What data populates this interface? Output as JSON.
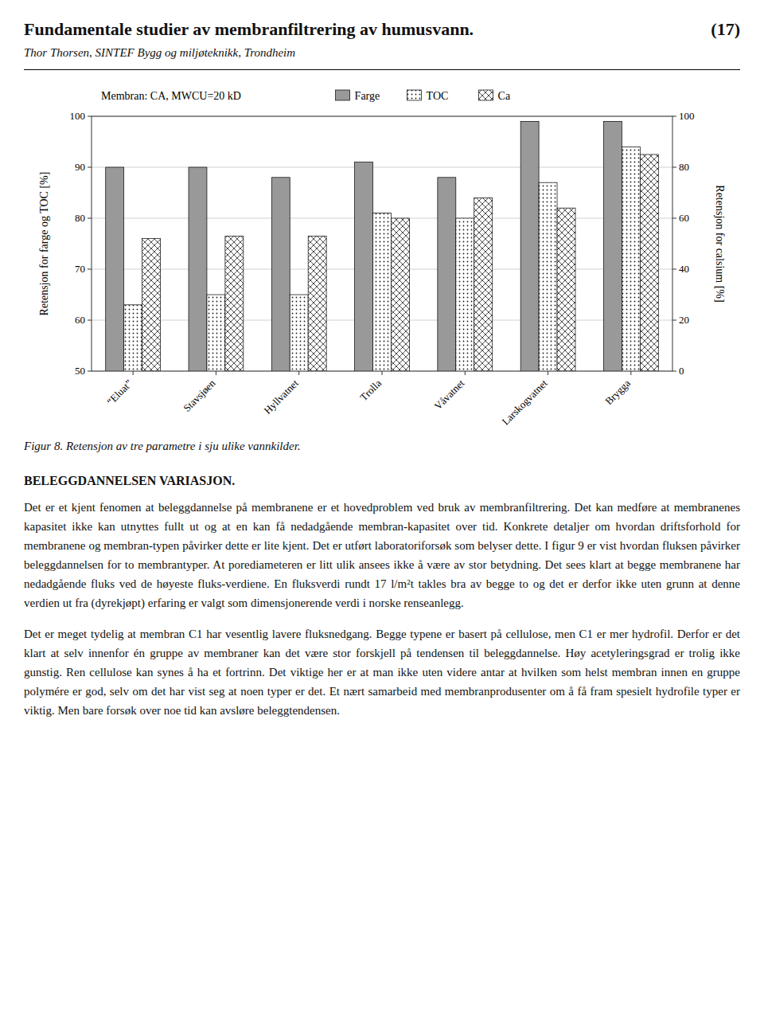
{
  "chart_data": {
    "type": "bar",
    "legend_title": "Membran: CA, MWCU=20 kD",
    "categories": [
      "“Eluat”",
      "Stavsjøen",
      "Hyllvatnet",
      "Trolla",
      "Våvatnet",
      "Larskogvatnet",
      "Brygga"
    ],
    "series": [
      {
        "name": "Farge",
        "color": "#999999",
        "values": [
          90,
          90,
          88,
          91,
          88,
          99,
          99
        ]
      },
      {
        "name": "TOC",
        "color": "#ffffff",
        "values": [
          63,
          65,
          65,
          81,
          80,
          87,
          94
        ]
      },
      {
        "name": "Ca",
        "color": "#ffffff",
        "axis": "y2",
        "values": [
          52,
          53,
          53,
          60,
          68,
          64,
          85
        ]
      }
    ],
    "ylabel": "Retensjon for farge og TOC [%]",
    "y2label": "Retensjon for calsium [%]",
    "ylim": [
      50,
      100
    ],
    "yticks": [
      50,
      60,
      70,
      80,
      90,
      100
    ],
    "y2lim": [
      0,
      100
    ],
    "y2ticks": [
      0,
      20,
      40,
      60,
      80,
      100
    ],
    "grid": true
  },
  "page": {
    "title": "Fundamentale studier av membranfiltrering av humusvann.",
    "title_num": "(17)",
    "subtitle": "Thor Thorsen, SINTEF Bygg og miljøteknikk, Trondheim",
    "caption": "Figur 8. Retensjon av tre parametre i sju ulike vannkilder.",
    "section_title": "BELEGGDANNELSEN VARIASJON.",
    "paragraphs": [
      "Det er et kjent fenomen at beleggdannelse på membranene er et hovedproblem ved bruk av membranfiltrering. Det kan medføre at membranenes kapasitet ikke kan utnyttes fullt ut og at en kan få nedadgående membran-kapasitet over tid. Konkrete detaljer om hvordan driftsforhold for membranene og membran-typen påvirker dette er lite kjent. Det er utført laboratoriforsøk som belyser dette. I figur 9 er vist hvordan fluksen påvirker beleggdannelsen for to membrantyper. At porediameteren er litt ulik ansees ikke å være av stor betydning. Det sees klart at begge membranene har nedadgående fluks ved de høyeste fluks-verdiene. En fluksverdi rundt 17 l/m²t takles bra av begge to og det er derfor ikke uten grunn at denne verdien ut fra (dyrekjøpt) erfaring er valgt som dimensjonerende verdi i norske renseanlegg.",
      "Det er meget tydelig at membran C1 har vesentlig lavere fluksnedgang. Begge typene er basert på cellulose, men C1 er mer hydrofil. Derfor er det klart at selv innenfor én gruppe av membraner kan det være stor forskjell på tendensen til beleggdannelse. Høy acetyleringsgrad er trolig ikke gunstig. Ren cellulose kan synes å ha et fortrinn. Det viktige her er at man ikke uten videre antar at hvilken som helst membran innen en gruppe polymére er god, selv om det har vist seg at noen typer er det. Et nært samarbeid med membranprodusenter om å få fram spesielt hydrofile typer er viktig. Men bare forsøk over noe tid kan avsløre beleggtendensen."
    ]
  }
}
